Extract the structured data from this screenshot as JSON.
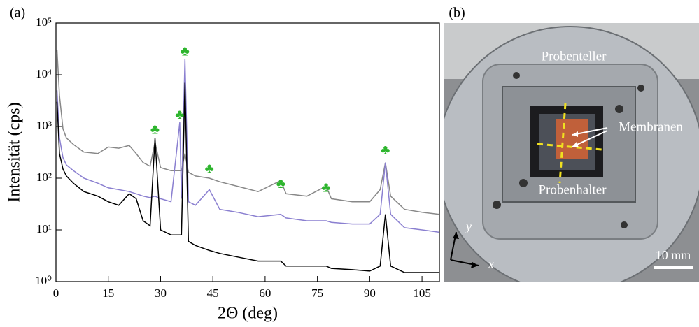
{
  "chart_data": {
    "type": "line",
    "panel_label": "(a)",
    "x_label": "2Θ (deg)",
    "y_label": "Intensität (cps)",
    "log_y": true,
    "xlim": [
      0,
      110
    ],
    "xticks": [
      0,
      15,
      30,
      45,
      60,
      75,
      90,
      105
    ],
    "ylim": [
      1,
      100000
    ],
    "yticks": [
      {
        "value": 1,
        "label": "10⁰"
      },
      {
        "value": 10,
        "label": "10¹"
      },
      {
        "value": 100,
        "label": "10²"
      },
      {
        "value": 1000,
        "label": "10³"
      },
      {
        "value": 10000,
        "label": "10⁴"
      },
      {
        "value": 100000,
        "label": "10⁵"
      }
    ],
    "x": [
      0.3,
      1,
      2,
      3,
      5,
      8,
      12,
      15,
      18,
      21,
      23,
      25,
      27,
      28.4,
      30,
      33,
      35.5,
      36,
      37,
      38,
      40,
      44,
      47,
      52,
      58,
      64.5,
      66,
      72,
      77.5,
      79,
      85,
      90,
      93,
      94.5,
      96,
      100,
      105,
      110
    ],
    "series": [
      {
        "color": "#888888",
        "values": [
          30000,
          4000,
          900,
          600,
          450,
          320,
          300,
          400,
          380,
          430,
          300,
          200,
          170,
          500,
          160,
          140,
          140,
          140,
          300,
          130,
          110,
          100,
          85,
          70,
          55,
          90,
          50,
          45,
          70,
          40,
          35,
          35,
          60,
          200,
          45,
          25,
          22,
          20
        ]
      },
      {
        "color": "#8a7fd0",
        "values": [
          5000,
          600,
          250,
          180,
          140,
          100,
          80,
          65,
          60,
          55,
          50,
          45,
          42,
          45,
          40,
          35,
          1200,
          40,
          20000,
          35,
          30,
          60,
          25,
          22,
          18,
          20,
          17,
          15,
          15,
          14,
          13,
          13,
          20,
          200,
          20,
          11,
          10,
          9
        ]
      },
      {
        "color": "#000000",
        "values": [
          3000,
          300,
          150,
          110,
          80,
          55,
          45,
          35,
          30,
          50,
          40,
          15,
          12,
          600,
          10,
          8,
          8,
          8,
          7000,
          6,
          5,
          4,
          3.5,
          3,
          2.5,
          2.5,
          2,
          2,
          2,
          1.8,
          1.7,
          1.6,
          2,
          20,
          2,
          1.5,
          1.5,
          1.5
        ]
      }
    ],
    "annotation_color": "#2db52d",
    "annotations": [
      {
        "text": "♣",
        "x": 28.4,
        "y": 830
      },
      {
        "text": "♣",
        "x": 35.5,
        "y": 1600
      },
      {
        "text": "♣",
        "x": 37,
        "y": 27000
      },
      {
        "text": "♣",
        "x": 44,
        "y": 145
      },
      {
        "text": "♣",
        "x": 64.5,
        "y": 75
      },
      {
        "text": "♣",
        "x": 77.5,
        "y": 63
      },
      {
        "text": "♣",
        "x": 94.5,
        "y": 330
      }
    ]
  },
  "photo": {
    "panel_label": "(b)",
    "plate_label": "Probenteller",
    "membrane_label": "Membranen",
    "holder_label": "Probenhalter",
    "axis_y": "y",
    "axis_x": "x",
    "scale_label": "10 mm"
  }
}
